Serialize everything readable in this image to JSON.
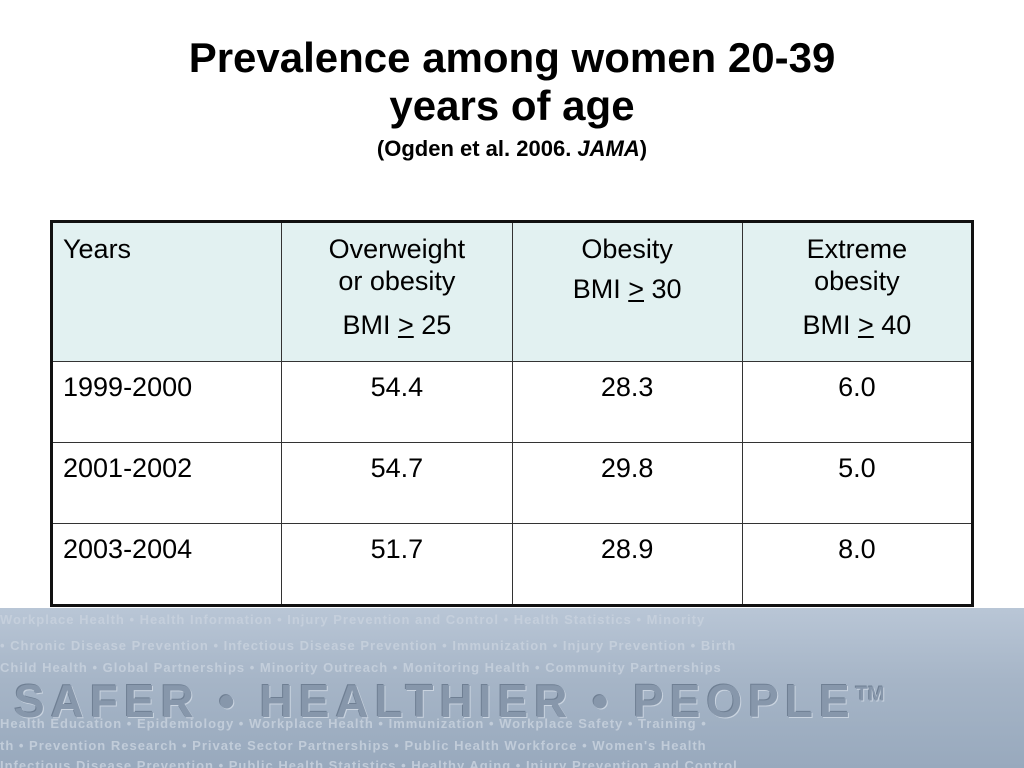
{
  "slide": {
    "title_line1": "Prevalence among women 20-39",
    "title_line2": "years of age",
    "subtitle_prefix": "(Ogden et al. 2006. ",
    "subtitle_journal": "JAMA",
    "subtitle_suffix": ")"
  },
  "table": {
    "headers": {
      "years": "Years",
      "overweight_line1": "Overweight",
      "overweight_line2": "or obesity",
      "overweight_bmi_prefix": "BMI ",
      "overweight_bmi_symbol": ">",
      "overweight_bmi_value": " 25",
      "obesity_line1": "Obesity",
      "obesity_bmi_prefix": "BMI ",
      "obesity_bmi_symbol": ">",
      "obesity_bmi_value": " 30",
      "extreme_line1": "Extreme",
      "extreme_line2": "obesity",
      "extreme_bmi_prefix": "BMI ",
      "extreme_bmi_symbol": ">",
      "extreme_bmi_value": " 40"
    },
    "rows": [
      {
        "years": "1999-2000",
        "overweight": "54.4",
        "obesity": "28.3",
        "extreme": "6.0"
      },
      {
        "years": "2001-2002",
        "overweight": "54.7",
        "obesity": "29.8",
        "extreme": "5.0"
      },
      {
        "years": "2003-2004",
        "overweight": "51.7",
        "obesity": "28.9",
        "extreme": "8.0"
      }
    ],
    "header_bg": "#e2f1f1"
  },
  "banner": {
    "main_text": "SAFER • HEALTHIER • PEOPLE",
    "trademark": "TM",
    "background_words_row1": "Workplace Health • Health Information • Injury Prevention and Control • Health Statistics • Minority",
    "background_words_row2": "• Chronic Disease Prevention • Infectious Disease Prevention • Immunization • Injury Prevention • Birth",
    "background_words_row3": "Child Health • Global Partnerships • Minority Outreach • Monitoring Health • Community Partnerships",
    "background_words_row4": "Health Education • Epidemiology • Workplace Health • Immunization • Workplace Safety • Training •",
    "background_words_row5": "th • Prevention Research • Private Sector Partnerships • Public Health Workforce • Women's Health",
    "background_words_row6": "Infectious Disease Prevention • Public Health Statistics • Healthy Aging • Injury Prevention and Control"
  }
}
